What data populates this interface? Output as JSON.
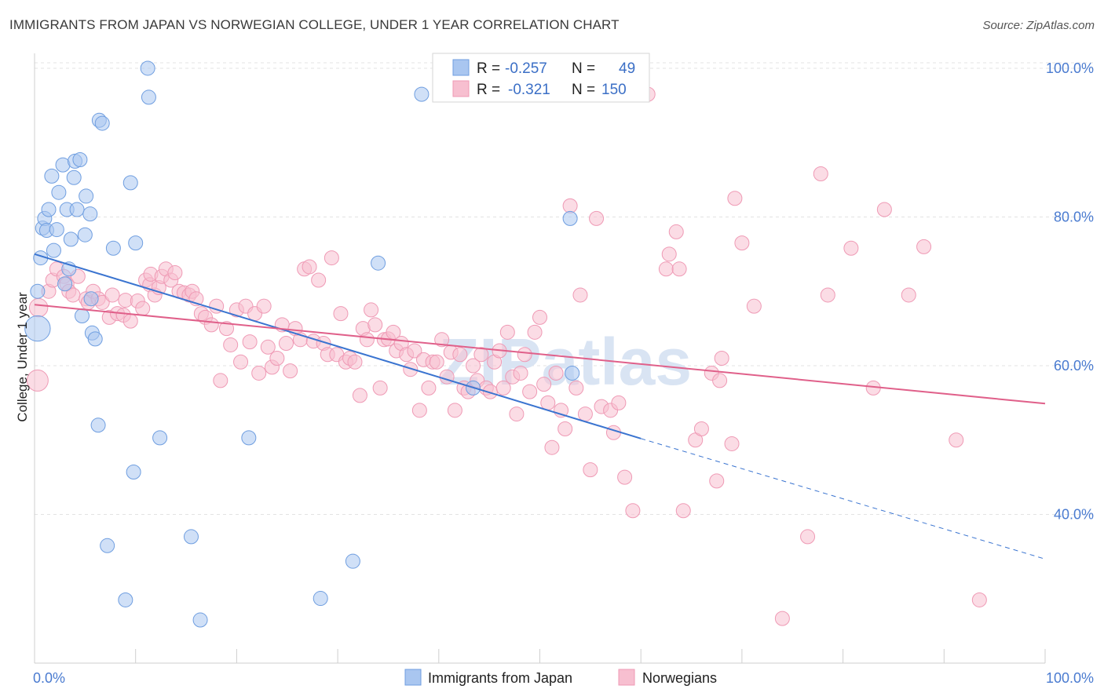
{
  "title": "IMMIGRANTS FROM JAPAN VS NORWEGIAN COLLEGE, UNDER 1 YEAR CORRELATION CHART",
  "source": "Source: ZipAtlas.com",
  "watermark": "ZIPatlas",
  "colors": {
    "japan_fill": "#a9c6f0",
    "japan_stroke": "#6f9ee0",
    "japan_line": "#3a74d0",
    "norway_fill": "#f7bfd0",
    "norway_stroke": "#ef9ab5",
    "norway_line": "#e0608a",
    "grid": "#e3e3e3",
    "axis_text": "#4a7bd0"
  },
  "legend": {
    "rows": [
      {
        "r_label": "R =",
        "r_value": "-0.257",
        "n_label": "N =",
        "n_value": "49"
      },
      {
        "r_label": "R =",
        "r_value": "-0.321",
        "n_label": "N =",
        "n_value": "150"
      }
    ]
  },
  "bottom_legend": [
    "Immigrants from Japan",
    "Norwegians"
  ],
  "chart_data": {
    "type": "scatter",
    "ylabel": "College, Under 1 year",
    "xlim": [
      0,
      100
    ],
    "ylim": [
      20,
      102
    ],
    "x_tick_labels": [
      "0.0%",
      "100.0%"
    ],
    "y_ticks": [
      {
        "value": 100,
        "label": "100.0%"
      },
      {
        "value": 80,
        "label": "80.0%"
      },
      {
        "value": 60,
        "label": "60.0%"
      },
      {
        "value": 40,
        "label": "40.0%"
      }
    ],
    "grid": true,
    "series": [
      {
        "name": "Immigrants from Japan",
        "r": -0.257,
        "n": 49,
        "trend": {
          "x0": 0,
          "y0": 75.0,
          "x1": 60,
          "y1": 50.2,
          "dash_to_x": 100,
          "dash_to_y": 34.0
        },
        "points": [
          [
            0.3,
            65.0,
            1.8
          ],
          [
            0.3,
            70.0,
            1.0
          ],
          [
            0.6,
            74.5,
            1
          ],
          [
            0.8,
            78.5,
            1
          ],
          [
            1.0,
            79.8,
            1
          ],
          [
            1.2,
            78.2,
            1
          ],
          [
            1.4,
            81.0,
            1
          ],
          [
            1.7,
            85.5,
            1
          ],
          [
            1.9,
            75.5,
            1
          ],
          [
            2.2,
            78.3,
            1
          ],
          [
            2.4,
            83.3,
            1
          ],
          [
            2.8,
            87.0,
            1
          ],
          [
            3.0,
            71.0,
            1
          ],
          [
            3.2,
            81.0,
            1
          ],
          [
            3.4,
            73.0,
            1
          ],
          [
            3.6,
            77.0,
            1
          ],
          [
            3.9,
            85.3,
            1
          ],
          [
            4.0,
            87.5,
            1
          ],
          [
            4.2,
            81.0,
            1
          ],
          [
            4.5,
            87.7,
            1
          ],
          [
            4.7,
            66.7,
            1
          ],
          [
            5.1,
            82.8,
            1
          ],
          [
            5.0,
            77.6,
            1
          ],
          [
            5.5,
            80.4,
            1
          ],
          [
            5.6,
            69.0,
            1
          ],
          [
            5.7,
            64.4,
            1
          ],
          [
            6.0,
            63.6,
            1
          ],
          [
            6.3,
            52.0,
            1
          ],
          [
            6.4,
            93.0,
            1
          ],
          [
            6.7,
            92.6,
            1
          ],
          [
            7.2,
            35.8,
            1
          ],
          [
            7.8,
            75.8,
            1
          ],
          [
            9.0,
            28.5,
            1
          ],
          [
            9.5,
            84.6,
            1
          ],
          [
            9.8,
            45.7,
            1
          ],
          [
            10.0,
            76.5,
            1
          ],
          [
            11.2,
            100.0,
            1
          ],
          [
            11.3,
            96.1,
            1
          ],
          [
            12.4,
            50.3,
            1
          ],
          [
            15.5,
            37.0,
            1
          ],
          [
            16.4,
            25.8,
            1
          ],
          [
            21.2,
            50.3,
            1
          ],
          [
            28.3,
            28.7,
            1
          ],
          [
            31.5,
            33.7,
            1
          ],
          [
            34.0,
            73.8,
            1
          ],
          [
            38.3,
            96.5,
            1
          ],
          [
            43.4,
            57.0,
            1
          ],
          [
            53.0,
            79.8,
            1
          ],
          [
            53.2,
            59.0,
            1
          ]
        ]
      },
      {
        "name": "Norwegians",
        "r": -0.321,
        "n": 150,
        "trend": {
          "x0": 0,
          "y0": 68.2,
          "x1": 100,
          "y1": 54.9
        },
        "points": [
          [
            0.3,
            58.0,
            1.5
          ],
          [
            0.4,
            67.8,
            1.3
          ],
          [
            1.4,
            70.0,
            1
          ],
          [
            1.8,
            71.5,
            1
          ],
          [
            2.2,
            73.0,
            1
          ],
          [
            2.9,
            72.0,
            1
          ],
          [
            3.2,
            71.0,
            1
          ],
          [
            3.4,
            70.0,
            1
          ],
          [
            3.8,
            69.5,
            1
          ],
          [
            4.3,
            72.0,
            1
          ],
          [
            5.1,
            69.0,
            1
          ],
          [
            5.3,
            68.5,
            1
          ],
          [
            5.8,
            70.0,
            1
          ],
          [
            6.3,
            69.0,
            1
          ],
          [
            6.7,
            68.5,
            1
          ],
          [
            7.4,
            66.5,
            1
          ],
          [
            7.7,
            69.5,
            1
          ],
          [
            8.2,
            67.0,
            1
          ],
          [
            8.8,
            66.8,
            1
          ],
          [
            9.0,
            68.8,
            1
          ],
          [
            9.5,
            66.0,
            1
          ],
          [
            10.2,
            68.7,
            1
          ],
          [
            10.7,
            67.7,
            1
          ],
          [
            11.0,
            71.5,
            1
          ],
          [
            11.4,
            70.9,
            1
          ],
          [
            11.5,
            72.3,
            1
          ],
          [
            11.9,
            69.5,
            1
          ],
          [
            12.3,
            70.5,
            1
          ],
          [
            12.6,
            72.0,
            1
          ],
          [
            13.0,
            73.0,
            1
          ],
          [
            13.5,
            71.5,
            1
          ],
          [
            13.9,
            72.5,
            1
          ],
          [
            14.3,
            70.0,
            1
          ],
          [
            14.8,
            69.8,
            1
          ],
          [
            15.3,
            69.5,
            1
          ],
          [
            15.6,
            70.0,
            1
          ],
          [
            16.0,
            69.0,
            1
          ],
          [
            16.5,
            67.0,
            1
          ],
          [
            16.9,
            66.5,
            1
          ],
          [
            17.5,
            65.5,
            1
          ],
          [
            18.0,
            68.0,
            1
          ],
          [
            18.4,
            58.0,
            1
          ],
          [
            19.0,
            65.0,
            1
          ],
          [
            19.4,
            62.8,
            1
          ],
          [
            20.0,
            67.5,
            1
          ],
          [
            20.4,
            60.5,
            1
          ],
          [
            20.9,
            68.0,
            1
          ],
          [
            21.3,
            63.2,
            1
          ],
          [
            21.8,
            67.0,
            1
          ],
          [
            22.2,
            59.0,
            1
          ],
          [
            22.7,
            68.0,
            1
          ],
          [
            23.1,
            62.5,
            1
          ],
          [
            23.5,
            59.8,
            1
          ],
          [
            24.0,
            61.0,
            1
          ],
          [
            24.5,
            65.5,
            1
          ],
          [
            24.9,
            63.0,
            1
          ],
          [
            25.3,
            59.3,
            1
          ],
          [
            25.8,
            65.0,
            1
          ],
          [
            26.3,
            63.5,
            1
          ],
          [
            26.7,
            73.0,
            1
          ],
          [
            27.2,
            73.3,
            1
          ],
          [
            27.6,
            63.3,
            1
          ],
          [
            28.1,
            71.5,
            1
          ],
          [
            28.6,
            63.0,
            1
          ],
          [
            29.0,
            61.5,
            1
          ],
          [
            29.4,
            74.5,
            1
          ],
          [
            29.9,
            61.5,
            1
          ],
          [
            30.3,
            67.0,
            1
          ],
          [
            30.8,
            60.5,
            1
          ],
          [
            31.2,
            61.0,
            1
          ],
          [
            31.7,
            60.5,
            1
          ],
          [
            32.2,
            56.0,
            1
          ],
          [
            32.5,
            65.0,
            1
          ],
          [
            32.9,
            63.5,
            1
          ],
          [
            33.3,
            67.5,
            1
          ],
          [
            33.7,
            65.5,
            1
          ],
          [
            34.2,
            57.0,
            1
          ],
          [
            34.6,
            63.5,
            1
          ],
          [
            35.0,
            63.6,
            1
          ],
          [
            35.5,
            64.5,
            1
          ],
          [
            35.8,
            62.0,
            1
          ],
          [
            36.3,
            63.0,
            1
          ],
          [
            36.8,
            61.5,
            1
          ],
          [
            37.2,
            59.5,
            1
          ],
          [
            37.6,
            62.0,
            1
          ],
          [
            38.1,
            54.0,
            1
          ],
          [
            38.5,
            60.8,
            1
          ],
          [
            39.0,
            57.0,
            1
          ],
          [
            39.4,
            60.5,
            1
          ],
          [
            39.8,
            60.5,
            1
          ],
          [
            40.3,
            63.5,
            1
          ],
          [
            40.8,
            58.5,
            1
          ],
          [
            41.2,
            61.8,
            1
          ],
          [
            41.6,
            54.0,
            1
          ],
          [
            42.1,
            61.5,
            1
          ],
          [
            42.5,
            57.0,
            1
          ],
          [
            42.9,
            56.5,
            1
          ],
          [
            43.4,
            60.0,
            1
          ],
          [
            43.8,
            58.0,
            1
          ],
          [
            44.2,
            61.5,
            1
          ],
          [
            44.7,
            57.0,
            1
          ],
          [
            45.1,
            56.5,
            1
          ],
          [
            45.5,
            60.5,
            1
          ],
          [
            46.0,
            62.0,
            1
          ],
          [
            46.4,
            57.0,
            1
          ],
          [
            46.8,
            64.5,
            1
          ],
          [
            47.3,
            58.5,
            1
          ],
          [
            47.7,
            53.5,
            1
          ],
          [
            48.1,
            59.0,
            1
          ],
          [
            48.5,
            61.5,
            1
          ],
          [
            49.0,
            56.5,
            1
          ],
          [
            49.5,
            64.5,
            1
          ],
          [
            50.0,
            66.5,
            1
          ],
          [
            50.4,
            57.5,
            1
          ],
          [
            50.8,
            55.0,
            1
          ],
          [
            51.2,
            49.0,
            1
          ],
          [
            51.6,
            59.0,
            1
          ],
          [
            52.1,
            54.0,
            1
          ],
          [
            52.5,
            51.5,
            1
          ],
          [
            53.0,
            81.5,
            1
          ],
          [
            53.6,
            57.0,
            1
          ],
          [
            54.0,
            69.5,
            1
          ],
          [
            54.5,
            53.5,
            1
          ],
          [
            55.0,
            46.0,
            1
          ],
          [
            55.6,
            79.8,
            1
          ],
          [
            56.1,
            54.5,
            1
          ],
          [
            57.0,
            54.0,
            1
          ],
          [
            57.3,
            51.0,
            1
          ],
          [
            57.8,
            55.0,
            1
          ],
          [
            58.4,
            45.0,
            1
          ],
          [
            59.2,
            40.5,
            1
          ],
          [
            60.7,
            96.5,
            1
          ],
          [
            62.8,
            75.0,
            1
          ],
          [
            62.5,
            73.0,
            1
          ],
          [
            63.5,
            78.0,
            1
          ],
          [
            63.8,
            73.0,
            1
          ],
          [
            64.2,
            40.5,
            1
          ],
          [
            65.4,
            50.0,
            1
          ],
          [
            66.0,
            51.5,
            1
          ],
          [
            67.0,
            59.0,
            1
          ],
          [
            67.5,
            44.5,
            1
          ],
          [
            68.0,
            61.0,
            1
          ],
          [
            69.0,
            49.5,
            1
          ],
          [
            69.3,
            82.5,
            1
          ],
          [
            70.0,
            76.5,
            1
          ],
          [
            71.2,
            68.0,
            1
          ],
          [
            74.0,
            26.0,
            1
          ],
          [
            76.5,
            37.0,
            1
          ],
          [
            77.8,
            85.8,
            1
          ],
          [
            78.5,
            69.5,
            1
          ],
          [
            80.8,
            75.8,
            1
          ],
          [
            83.0,
            57.0,
            1
          ],
          [
            84.1,
            81.0,
            1
          ],
          [
            86.5,
            69.5,
            1
          ],
          [
            88.0,
            76.0,
            1
          ],
          [
            91.2,
            50.0,
            1
          ],
          [
            93.5,
            28.5,
            1
          ],
          [
            67.8,
            58.0,
            1
          ]
        ]
      }
    ]
  }
}
